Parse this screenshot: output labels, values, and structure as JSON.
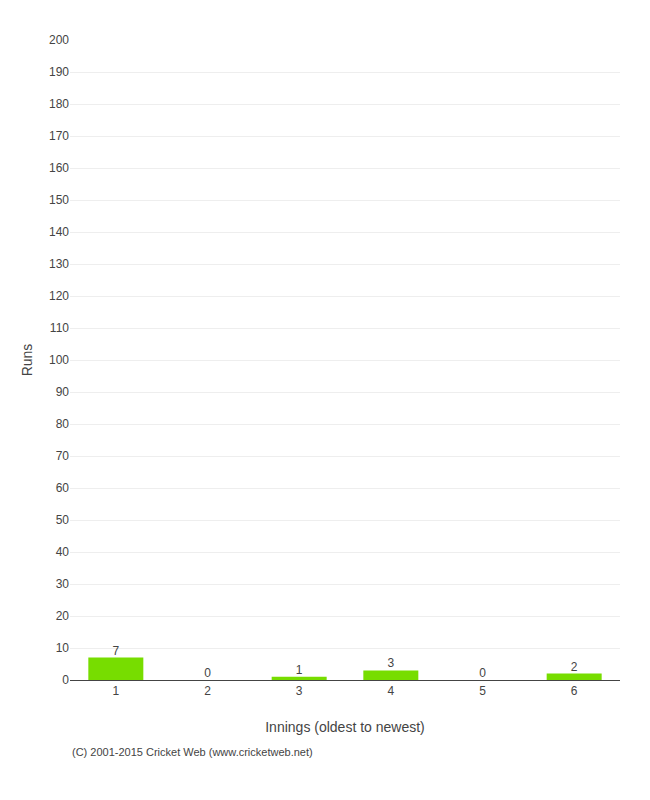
{
  "chart_data": {
    "type": "bar",
    "categories": [
      1,
      2,
      3,
      4,
      5,
      6
    ],
    "values": [
      7,
      0,
      1,
      3,
      0,
      2
    ],
    "color": "#77dd00",
    "xlabel": "Innings (oldest to newest)",
    "ylabel": "Runs",
    "ylim": [
      0,
      200
    ],
    "yticks": [
      0,
      10,
      20,
      30,
      40,
      50,
      60,
      70,
      80,
      90,
      100,
      110,
      120,
      130,
      140,
      150,
      160,
      170,
      180,
      190,
      200
    ],
    "grid": true,
    "data_labels": true,
    "annotations": [
      "(C) 2001-2015 Cricket Web (www.cricketweb.net)"
    ]
  }
}
